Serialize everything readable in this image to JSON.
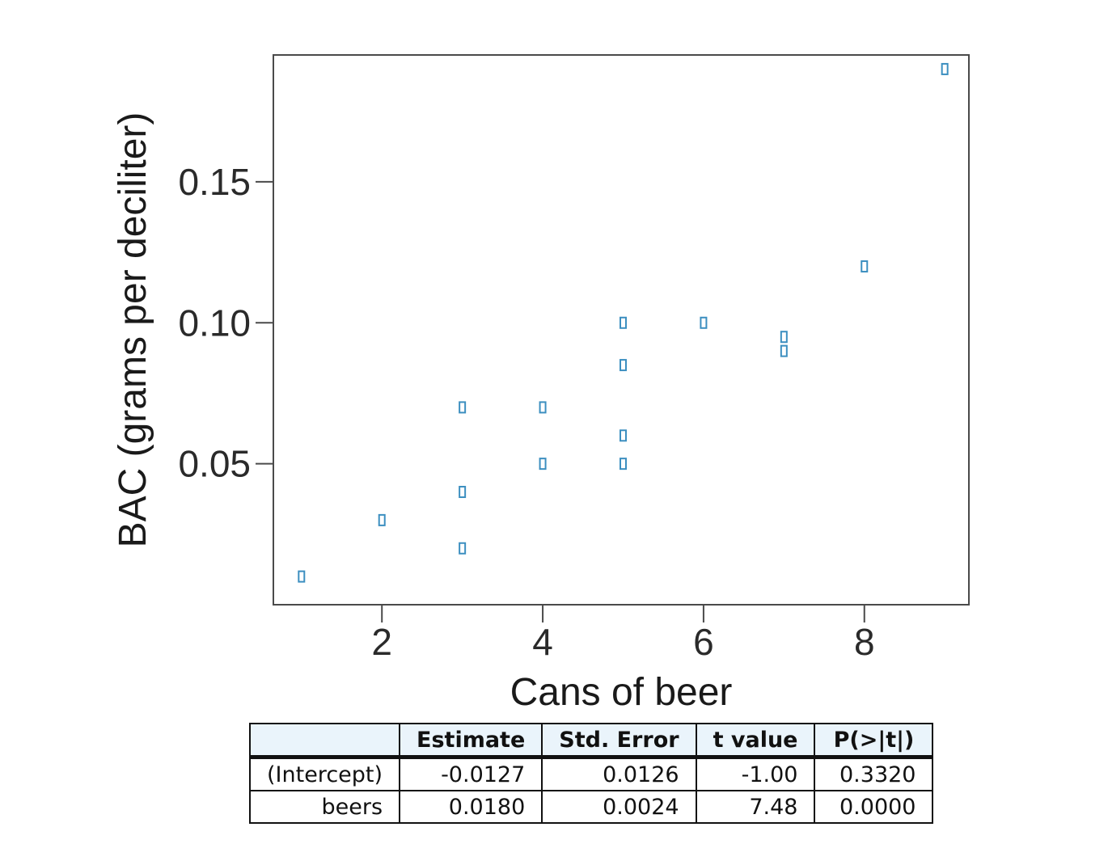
{
  "chart_data": {
    "type": "scatter",
    "title": "",
    "xlabel": "Cans of beer",
    "ylabel": "BAC (grams per deciliter)",
    "xlim": [
      0.65,
      9.3
    ],
    "ylim": [
      0.0,
      0.195
    ],
    "xticks": [
      2,
      4,
      6,
      8
    ],
    "xtick_labels": [
      "2",
      "4",
      "6",
      "8"
    ],
    "yticks": [
      0.05,
      0.1,
      0.15
    ],
    "ytick_labels": [
      "0.05",
      "0.10",
      "0.15"
    ],
    "grid": false,
    "marker_color": "#3c8fc0",
    "points": [
      {
        "x": 1,
        "y": 0.01
      },
      {
        "x": 2,
        "y": 0.03
      },
      {
        "x": 3,
        "y": 0.07
      },
      {
        "x": 3,
        "y": 0.04
      },
      {
        "x": 3,
        "y": 0.02
      },
      {
        "x": 4,
        "y": 0.07
      },
      {
        "x": 4,
        "y": 0.05
      },
      {
        "x": 5,
        "y": 0.1
      },
      {
        "x": 5,
        "y": 0.085
      },
      {
        "x": 5,
        "y": 0.06
      },
      {
        "x": 5,
        "y": 0.05
      },
      {
        "x": 6,
        "y": 0.1
      },
      {
        "x": 7,
        "y": 0.095
      },
      {
        "x": 7,
        "y": 0.09
      },
      {
        "x": 8,
        "y": 0.12
      },
      {
        "x": 9,
        "y": 0.19
      }
    ]
  },
  "regression_table": {
    "headers": [
      "",
      "Estimate",
      "Std. Error",
      "t value",
      "P(>|t|)"
    ],
    "rows": [
      {
        "label": "(Intercept)",
        "estimate": "-0.0127",
        "std_error": "0.0126",
        "t_value": "-1.00",
        "p_value": "0.3320"
      },
      {
        "label": "beers",
        "estimate": "0.0180",
        "std_error": "0.0024",
        "t_value": "7.48",
        "p_value": "0.0000"
      }
    ],
    "header_bg": "#eaf4fb"
  }
}
